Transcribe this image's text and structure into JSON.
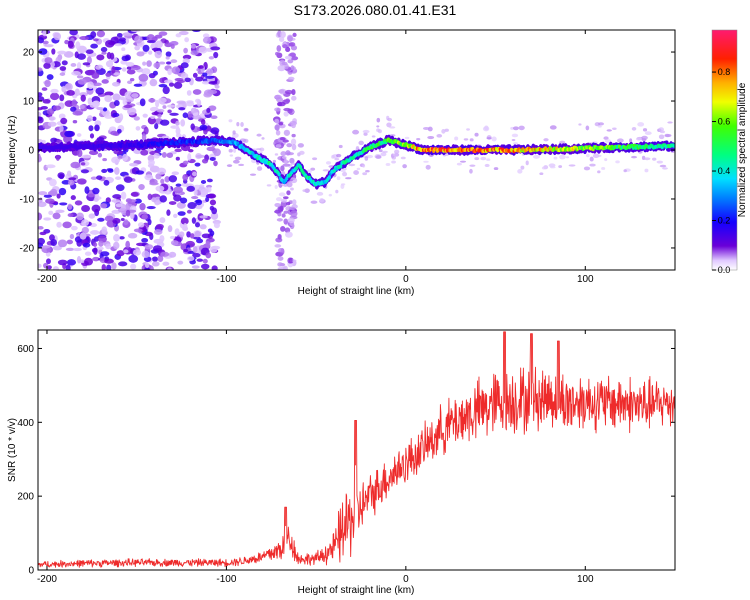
{
  "title": "S173.2026.080.01.41.E31",
  "chart_data": [
    {
      "type": "heatmap",
      "name": "spectrogram",
      "xlabel": "Height of straight line (km)",
      "ylabel": "Frequency (Hz)",
      "xlim": [
        -205,
        150
      ],
      "ylim": [
        -24.5,
        24.5
      ],
      "xticks": [
        -200,
        -100,
        0,
        100
      ],
      "xtick_labels": [
        "-200",
        "-100",
        "0",
        "100"
      ],
      "yticks": [
        -20,
        -10,
        0,
        10,
        20
      ],
      "ytick_labels": [
        "-20",
        "-10",
        "0",
        "10",
        "20"
      ],
      "colorbar": {
        "label": "Normalized spectral amplitude",
        "range": [
          0,
          0.97
        ],
        "ticks": [
          0.0,
          0.2,
          0.4,
          0.6,
          0.8
        ],
        "tick_labels": [
          "0.0",
          "0.2",
          "0.4",
          "0.6",
          "0.8"
        ]
      },
      "ridge": {
        "x": [
          -205,
          -150,
          -105,
          -95,
          -85,
          -75,
          -68,
          -60,
          -55,
          -50,
          -45,
          -40,
          -30,
          -20,
          -10,
          0,
          10,
          30,
          60,
          90,
          120,
          150
        ],
        "freq": [
          0.5,
          1.0,
          2.0,
          1.5,
          -1.0,
          -3.0,
          -6.5,
          -3.0,
          -5.5,
          -7.0,
          -6.5,
          -4.0,
          -1.5,
          0.5,
          2.0,
          1.0,
          0.0,
          0.0,
          0.0,
          0.2,
          0.6,
          0.8
        ],
        "amplitude": [
          0.12,
          0.18,
          0.3,
          0.35,
          0.45,
          0.5,
          0.42,
          0.45,
          0.5,
          0.45,
          0.4,
          0.45,
          0.5,
          0.55,
          0.6,
          0.7,
          0.9,
          0.92,
          0.85,
          0.75,
          0.6,
          0.5
        ]
      },
      "noise_region": [
        -205,
        -105
      ],
      "noise_column": [
        -72,
        -62
      ]
    },
    {
      "type": "line",
      "name": "snr",
      "xlabel": "Height of straight line (km)",
      "ylabel": "SNR (10 * v/v)",
      "xlim": [
        -205,
        150
      ],
      "ylim": [
        0,
        650
      ],
      "xticks": [
        -200,
        -100,
        0,
        100
      ],
      "xtick_labels": [
        "-200",
        "-100",
        "0",
        "100"
      ],
      "yticks": [
        0,
        200,
        400,
        600
      ],
      "ytick_labels": [
        "0",
        "200",
        "400",
        "600"
      ],
      "color": "#ee2b2b",
      "series": [
        {
          "name": "SNR",
          "x": [
            -205,
            -180,
            -150,
            -120,
            -100,
            -90,
            -80,
            -70,
            -65,
            -60,
            -50,
            -40,
            -35,
            -30,
            -25,
            -20,
            -10,
            0,
            10,
            20,
            30,
            40,
            50,
            60,
            70,
            80,
            90,
            100,
            110,
            120,
            130,
            140,
            150
          ],
          "values": [
            15,
            18,
            20,
            20,
            20,
            25,
            35,
            55,
            90,
            30,
            30,
            60,
            110,
            140,
            170,
            200,
            250,
            290,
            330,
            380,
            410,
            430,
            450,
            460,
            460,
            470,
            450,
            460,
            450,
            455,
            445,
            450,
            455
          ],
          "noise_amplitude": [
            10,
            12,
            12,
            12,
            12,
            15,
            20,
            40,
            60,
            20,
            20,
            50,
            120,
            120,
            80,
            70,
            70,
            70,
            70,
            80,
            90,
            100,
            110,
            110,
            110,
            100,
            100,
            90,
            90,
            90,
            90,
            80,
            80
          ],
          "peaks": [
            {
              "x": -67,
              "value": 170
            },
            {
              "x": -28,
              "value": 405
            },
            {
              "x": 55,
              "value": 645
            },
            {
              "x": 70,
              "value": 640
            },
            {
              "x": 85,
              "value": 620
            }
          ]
        }
      ]
    }
  ]
}
